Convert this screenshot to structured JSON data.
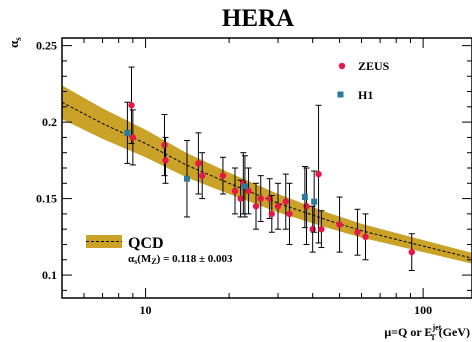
{
  "chart_data": {
    "type": "scatter",
    "title": "HERA",
    "ylabel_main": "α",
    "ylabel_sub": "s",
    "xlabel_main": "μ=Q or E",
    "xlabel_sup": "jet",
    "xlabel_sub": "T",
    "xlabel_unit": " (GeV)",
    "x_scale": "log",
    "xlim": [
      5,
      150
    ],
    "ylim": [
      0.085,
      0.255
    ],
    "x_ticks": [
      10,
      100
    ],
    "x_tick_labels": [
      "10",
      "100"
    ],
    "y_ticks": [
      0.1,
      0.15,
      0.2,
      0.25
    ],
    "y_tick_labels": [
      "0.1",
      "0.15",
      "0.2",
      "0.25"
    ],
    "legend": {
      "placement": "top-right",
      "entries": [
        {
          "label": "ZEUS",
          "marker": "circle",
          "color": "#e8174a"
        },
        {
          "label": "H1",
          "marker": "square",
          "color": "#2b7a9a"
        }
      ]
    },
    "qcd_legend": {
      "label": "QCD",
      "alpha_main": "α",
      "alpha_sub": "s",
      "alpha_paren": "(M",
      "alpha_sub2": "Z",
      "alpha_rest": ") = 0.118 ± 0.003"
    },
    "band": {
      "color": "#c9a227",
      "line_color": "#000000",
      "x": [
        5,
        7,
        10,
        14,
        20,
        30,
        45,
        60,
        90,
        150
      ],
      "center": [
        0.213,
        0.199,
        0.186,
        0.172,
        0.16,
        0.147,
        0.136,
        0.129,
        0.121,
        0.111
      ],
      "half_width": [
        0.011,
        0.01,
        0.009,
        0.008,
        0.007,
        0.006,
        0.005,
        0.0045,
        0.004,
        0.0035
      ]
    },
    "series": [
      {
        "name": "ZEUS",
        "color": "#e8174a",
        "marker": "circle",
        "x": [
          8.9,
          9.0,
          11.7,
          11.8,
          15.5,
          16,
          19,
          21,
          22,
          22.5,
          23.5,
          25,
          26,
          28,
          28.5,
          30,
          32,
          33,
          38,
          40,
          42,
          43,
          50,
          58,
          62,
          91
        ],
        "y": [
          0.211,
          0.19,
          0.185,
          0.175,
          0.173,
          0.165,
          0.165,
          0.155,
          0.15,
          0.16,
          0.155,
          0.145,
          0.15,
          0.15,
          0.14,
          0.145,
          0.148,
          0.14,
          0.145,
          0.13,
          0.166,
          0.13,
          0.133,
          0.128,
          0.125,
          0.115
        ],
        "err": [
          0.025,
          0.018,
          0.02,
          0.015,
          0.02,
          0.015,
          0.012,
          0.015,
          0.012,
          0.02,
          0.015,
          0.015,
          0.015,
          0.013,
          0.012,
          0.015,
          0.018,
          0.02,
          0.025,
          0.015,
          0.045,
          0.012,
          0.018,
          0.015,
          0.015,
          0.012
        ]
      },
      {
        "name": "H1",
        "color": "#2b7a9a",
        "marker": "square",
        "x": [
          8.6,
          14.1,
          22.8,
          37.5,
          40.5
        ],
        "y": [
          0.193,
          0.163,
          0.158,
          0.151,
          0.148
        ],
        "err": [
          0.02,
          0.025,
          0.02,
          0.02,
          0.02
        ]
      }
    ]
  }
}
